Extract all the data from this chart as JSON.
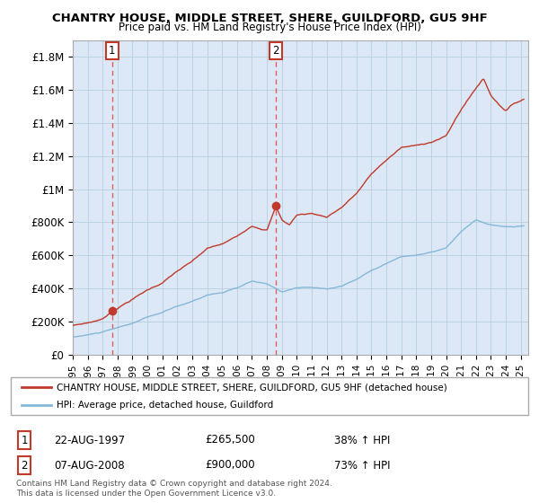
{
  "title": "CHANTRY HOUSE, MIDDLE STREET, SHERE, GUILDFORD, GU5 9HF",
  "subtitle": "Price paid vs. HM Land Registry's House Price Index (HPI)",
  "ylim": [
    0,
    1900000
  ],
  "xlim_start": 1995.0,
  "xlim_end": 2025.5,
  "yticks": [
    0,
    200000,
    400000,
    600000,
    800000,
    1000000,
    1200000,
    1400000,
    1600000,
    1800000
  ],
  "ytick_labels": [
    "£0",
    "£200K",
    "£400K",
    "£600K",
    "£800K",
    "£1M",
    "£1.2M",
    "£1.4M",
    "£1.6M",
    "£1.8M"
  ],
  "xtick_years": [
    1995,
    1996,
    1997,
    1998,
    1999,
    2000,
    2001,
    2002,
    2003,
    2004,
    2005,
    2006,
    2007,
    2008,
    2009,
    2010,
    2011,
    2012,
    2013,
    2014,
    2015,
    2016,
    2017,
    2018,
    2019,
    2020,
    2021,
    2022,
    2023,
    2024,
    2025
  ],
  "purchase1_x": 1997.64,
  "purchase1_y": 265500,
  "purchase1_label": "1",
  "purchase1_date": "22-AUG-1997",
  "purchase1_price": "£265,500",
  "purchase1_hpi": "38% ↑ HPI",
  "purchase2_x": 2008.6,
  "purchase2_y": 900000,
  "purchase2_label": "2",
  "purchase2_date": "07-AUG-2008",
  "purchase2_price": "£900,000",
  "purchase2_hpi": "73% ↑ HPI",
  "legend_line1": "CHANTRY HOUSE, MIDDLE STREET, SHERE, GUILDFORD, GU5 9HF (detached house)",
  "legend_line2": "HPI: Average price, detached house, Guildford",
  "footer_line1": "Contains HM Land Registry data © Crown copyright and database right 2024.",
  "footer_line2": "This data is licensed under the Open Government Licence v3.0.",
  "line_color_red": "#c0392b",
  "line_color_blue": "#85b8d8",
  "dot_color": "#c0392b",
  "vline_color": "#e05050",
  "plot_bg_color": "#dce8f5",
  "bg_color": "#ffffff",
  "grid_color": "#b8cfe0"
}
